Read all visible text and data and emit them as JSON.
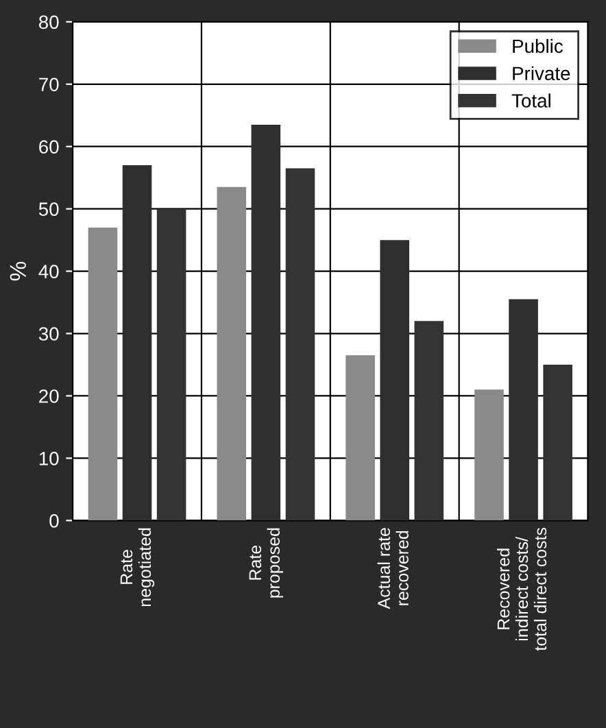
{
  "chart_data": {
    "type": "bar",
    "ylabel": "%",
    "categories": [
      "Rate\nnegotiated",
      "Rate\nproposed",
      "Actual rate\nrecovered",
      "Recovered\nindirect costs/\ntotal direct costs"
    ],
    "series": [
      {
        "name": "Public",
        "color": "#8a8a8a",
        "values": [
          47,
          53.5,
          26.5,
          21
        ]
      },
      {
        "name": "Private",
        "color": "#2e2e2e",
        "values": [
          57,
          63.5,
          45,
          35.5
        ]
      },
      {
        "name": "Total",
        "color": "#333333",
        "values": [
          50,
          56.5,
          32,
          25
        ]
      }
    ],
    "ylim": [
      0,
      80
    ],
    "yticks": [
      0,
      10,
      20,
      30,
      40,
      50,
      60,
      70,
      80
    ],
    "grid": true,
    "legend": "top right"
  }
}
